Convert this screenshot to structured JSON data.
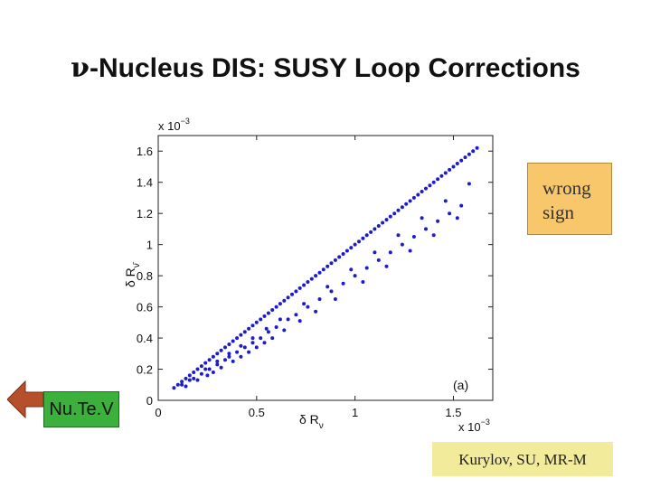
{
  "slide": {
    "title_symbol": "ν",
    "title_text": "-Nucleus DIS: SUSY Loop Corrections",
    "callout_wrong_sign": [
      "wrong",
      "sign"
    ],
    "nav_button_label": "Nu.Te.V",
    "credit": "Kurylov, SU, MR-M"
  },
  "colors": {
    "points": "#1c1ccc",
    "callout": "#f8c66b",
    "nav_button": "#3cb03c",
    "nav_arrow": "#b5502a",
    "credit_box": "#f2eb9c"
  },
  "chart_data": {
    "type": "scatter",
    "panel_label": "(a)",
    "xlabel": "δ R",
    "xlabel_subscript": "ν",
    "ylabel": "δ R",
    "ylabel_subscript": "ν̄",
    "x_multiplier": "x 10",
    "x_multiplier_exp": "−3",
    "y_multiplier": "x 10",
    "y_multiplier_exp": "−3",
    "xlim": [
      0,
      1.7
    ],
    "ylim": [
      0,
      1.7
    ],
    "xticks": [
      "0",
      "0.5",
      "1",
      "1.5"
    ],
    "yticks": [
      "0",
      "0.2",
      "0.4",
      "0.6",
      "0.8",
      "1",
      "1.2",
      "1.4",
      "1.6"
    ],
    "x_tick_values": [
      0,
      0.5,
      1,
      1.5
    ],
    "y_tick_values": [
      0,
      0.2,
      0.4,
      0.6,
      0.8,
      1,
      1.2,
      1.4,
      1.6
    ],
    "grid": false,
    "series": [
      {
        "x": [
          0.08,
          0.1,
          0.12,
          0.14,
          0.16,
          0.18,
          0.2,
          0.22,
          0.24,
          0.26,
          0.28,
          0.3,
          0.32,
          0.34,
          0.36,
          0.38,
          0.4,
          0.42,
          0.44,
          0.46,
          0.48,
          0.5,
          0.52,
          0.54,
          0.56,
          0.58,
          0.6,
          0.62,
          0.64,
          0.66,
          0.68,
          0.7,
          0.72,
          0.74,
          0.76,
          0.78,
          0.8,
          0.82,
          0.84,
          0.86,
          0.88,
          0.9,
          0.92,
          0.94,
          0.96,
          0.98,
          1.0,
          1.02,
          1.04,
          1.06,
          1.08,
          1.1,
          1.12,
          1.14,
          1.16,
          1.18,
          1.2,
          1.22,
          1.24,
          1.26,
          1.28,
          1.3,
          1.32,
          1.34,
          1.36,
          1.38,
          1.4,
          1.42,
          1.44,
          1.46,
          1.48,
          1.5,
          1.52,
          1.54,
          1.56,
          1.58,
          1.6,
          1.62,
          0.12,
          0.18,
          0.22,
          0.26,
          0.3,
          0.34,
          0.36,
          0.4,
          0.44,
          0.48,
          0.52,
          0.56,
          0.6,
          0.66,
          0.7,
          0.76,
          0.82,
          0.88,
          0.94,
          1.0,
          1.06,
          1.12,
          1.18,
          1.24,
          1.3,
          1.36,
          1.42,
          1.48,
          1.54,
          0.14,
          0.2,
          0.25,
          0.28,
          0.32,
          0.38,
          0.42,
          0.46,
          0.5,
          0.54,
          0.58,
          0.64,
          0.72,
          0.8,
          0.9,
          1.04,
          1.16,
          1.28,
          1.4,
          1.52,
          0.16,
          0.24,
          0.3,
          0.36,
          0.42,
          0.48,
          0.55,
          0.62,
          0.74,
          0.86,
          0.98,
          1.1,
          1.22,
          1.34,
          1.46,
          1.58
        ],
        "y": [
          0.08,
          0.1,
          0.12,
          0.14,
          0.16,
          0.18,
          0.2,
          0.22,
          0.24,
          0.26,
          0.28,
          0.3,
          0.32,
          0.34,
          0.36,
          0.38,
          0.4,
          0.42,
          0.44,
          0.46,
          0.48,
          0.5,
          0.52,
          0.54,
          0.56,
          0.58,
          0.6,
          0.62,
          0.64,
          0.66,
          0.68,
          0.7,
          0.72,
          0.74,
          0.76,
          0.78,
          0.8,
          0.82,
          0.84,
          0.86,
          0.88,
          0.9,
          0.92,
          0.94,
          0.96,
          0.98,
          1.0,
          1.02,
          1.04,
          1.06,
          1.08,
          1.1,
          1.12,
          1.14,
          1.16,
          1.18,
          1.2,
          1.22,
          1.24,
          1.26,
          1.28,
          1.3,
          1.32,
          1.34,
          1.36,
          1.38,
          1.4,
          1.42,
          1.44,
          1.46,
          1.48,
          1.5,
          1.52,
          1.54,
          1.56,
          1.58,
          1.6,
          1.62,
          0.1,
          0.14,
          0.17,
          0.2,
          0.23,
          0.26,
          0.28,
          0.31,
          0.34,
          0.37,
          0.4,
          0.44,
          0.47,
          0.52,
          0.55,
          0.6,
          0.65,
          0.7,
          0.75,
          0.8,
          0.85,
          0.9,
          0.95,
          1.0,
          1.05,
          1.1,
          1.15,
          1.2,
          1.25,
          0.09,
          0.13,
          0.16,
          0.18,
          0.21,
          0.25,
          0.28,
          0.31,
          0.34,
          0.37,
          0.4,
          0.45,
          0.51,
          0.57,
          0.65,
          0.76,
          0.86,
          0.96,
          1.06,
          1.17,
          0.13,
          0.2,
          0.25,
          0.3,
          0.35,
          0.4,
          0.46,
          0.52,
          0.62,
          0.73,
          0.84,
          0.95,
          1.06,
          1.17,
          1.28,
          1.39
        ]
      }
    ]
  }
}
